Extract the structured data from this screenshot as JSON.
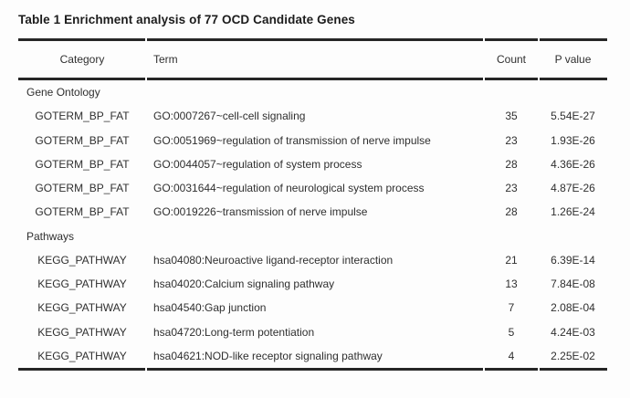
{
  "title": "Table 1 Enrichment analysis of 77 OCD Candidate Genes",
  "colors": {
    "text": "#2f2f2f",
    "title_text": "#1c1c1c",
    "rule": "#262626",
    "background": "#fdfdfd"
  },
  "table": {
    "columns": [
      "Category",
      "Term",
      "Count",
      "P value"
    ],
    "sections": [
      {
        "header": "Gene Ontology",
        "rows": [
          {
            "category": "GOTERM_BP_FAT",
            "term": "GO:0007267~cell-cell signaling",
            "count": "35",
            "p_value": "5.54E-27"
          },
          {
            "category": "GOTERM_BP_FAT",
            "term": "GO:0051969~regulation of transmission of nerve impulse",
            "count": "23",
            "p_value": "1.93E-26"
          },
          {
            "category": "GOTERM_BP_FAT",
            "term": "GO:0044057~regulation of system process",
            "count": "28",
            "p_value": "4.36E-26"
          },
          {
            "category": "GOTERM_BP_FAT",
            "term": "GO:0031644~regulation of neurological system process",
            "count": "23",
            "p_value": "4.87E-26"
          },
          {
            "category": "GOTERM_BP_FAT",
            "term": "GO:0019226~transmission of nerve impulse",
            "count": "28",
            "p_value": "1.26E-24"
          }
        ]
      },
      {
        "header": "Pathways",
        "rows": [
          {
            "category": "KEGG_PATHWAY",
            "term": "hsa04080:Neuroactive ligand-receptor interaction",
            "count": "21",
            "p_value": "6.39E-14"
          },
          {
            "category": "KEGG_PATHWAY",
            "term": "hsa04020:Calcium signaling pathway",
            "count": "13",
            "p_value": "7.84E-08"
          },
          {
            "category": "KEGG_PATHWAY",
            "term": "hsa04540:Gap junction",
            "count": "7",
            "p_value": "2.08E-04"
          },
          {
            "category": "KEGG_PATHWAY",
            "term": "hsa04720:Long-term potentiation",
            "count": "5",
            "p_value": "4.24E-03"
          },
          {
            "category": "KEGG_PATHWAY",
            "term": "hsa04621:NOD-like receptor signaling pathway",
            "count": "4",
            "p_value": "2.25E-02"
          }
        ]
      }
    ]
  }
}
